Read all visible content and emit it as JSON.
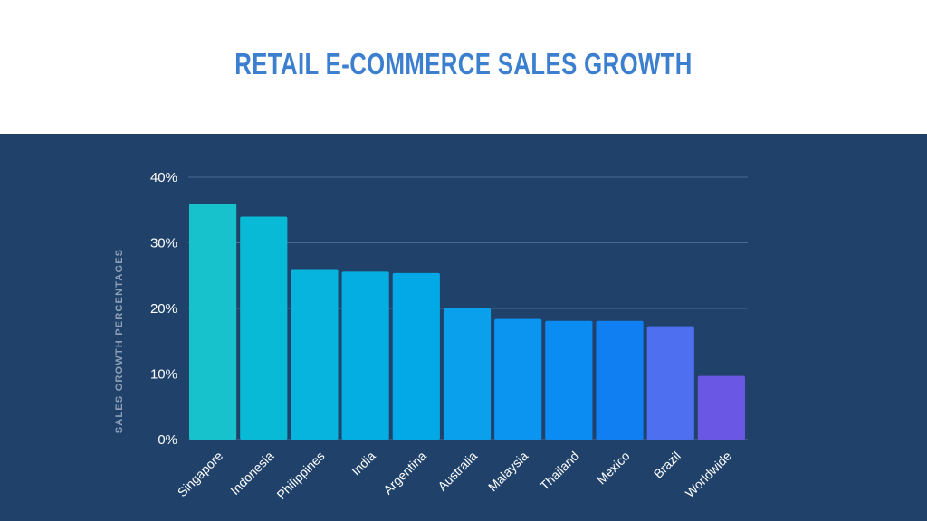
{
  "chart_data": {
    "type": "bar",
    "title": "RETAIL E-COMMERCE SALES GROWTH",
    "xlabel": "",
    "ylabel": "SALES GROWTH PERCENTAGES",
    "categories": [
      "Singapore",
      "Indonesia",
      "Philippines",
      "India",
      "Argentina",
      "Australia",
      "Malaysia",
      "Thailand",
      "Mexico",
      "Brazil",
      "Worldwide"
    ],
    "values": [
      36,
      34,
      26,
      25.6,
      25.4,
      20,
      18.4,
      18.1,
      18.1,
      17.3,
      9.7
    ],
    "ylim": [
      0,
      40
    ],
    "yticks": [
      0,
      10,
      20,
      30,
      40
    ],
    "ytick_labels": [
      "0%",
      "10%",
      "20%",
      "30%",
      "40%"
    ],
    "grid": true,
    "legend": "none",
    "colors": [
      "#17c2cc",
      "#09bad6",
      "#07b4de",
      "#04aee3",
      "#03a9e6",
      "#0aa0ec",
      "#0b95f0",
      "#0a8cf3",
      "#0f7ff2",
      "#4d6ff0",
      "#6a57e4"
    ],
    "gridline_color": "#4a6a91",
    "background": "#20426a"
  }
}
